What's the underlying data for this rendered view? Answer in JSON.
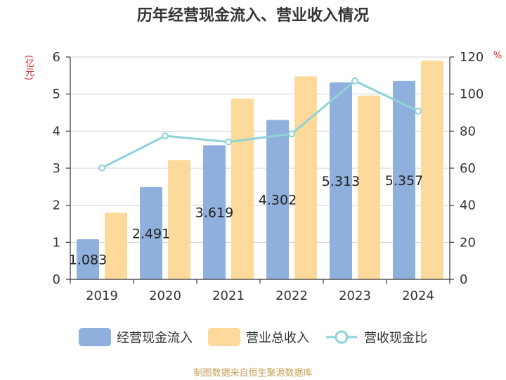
{
  "chart_data": {
    "type": "bar",
    "title": "历年经营现金流入、营业收入情况",
    "y_unit_left": "(亿元)",
    "y_unit_right": "%",
    "categories": [
      "2019",
      "2020",
      "2021",
      "2022",
      "2023",
      "2024"
    ],
    "series": [
      {
        "name": "经营现金流入",
        "type": "bar",
        "axis": "left",
        "color": "#8fb0dd",
        "values": [
          1.083,
          2.491,
          3.619,
          4.302,
          5.313,
          5.357
        ],
        "labels": [
          "1.083",
          "2.491",
          "3.619",
          "4.302",
          "5.313",
          "5.357"
        ]
      },
      {
        "name": "营业总收入",
        "type": "bar",
        "axis": "left",
        "color": "#fdd99b",
        "values": [
          1.8,
          3.22,
          4.88,
          5.48,
          4.96,
          5.9
        ]
      },
      {
        "name": "营收现金比",
        "type": "line",
        "axis": "right",
        "color": "#8fd3d6",
        "values": [
          60.2,
          77.4,
          74.2,
          78.5,
          107.1,
          90.8
        ]
      }
    ],
    "ylim_left": [
      0,
      6
    ],
    "yticks_left": [
      "0",
      "1",
      "2",
      "3",
      "4",
      "5",
      "6"
    ],
    "ylim_right": [
      0,
      120
    ],
    "yticks_right": [
      "0",
      "20",
      "40",
      "60",
      "80",
      "100",
      "120"
    ],
    "grid": true,
    "legend_position": "bottom"
  },
  "source": "制图数据来自恒生聚源数据库"
}
